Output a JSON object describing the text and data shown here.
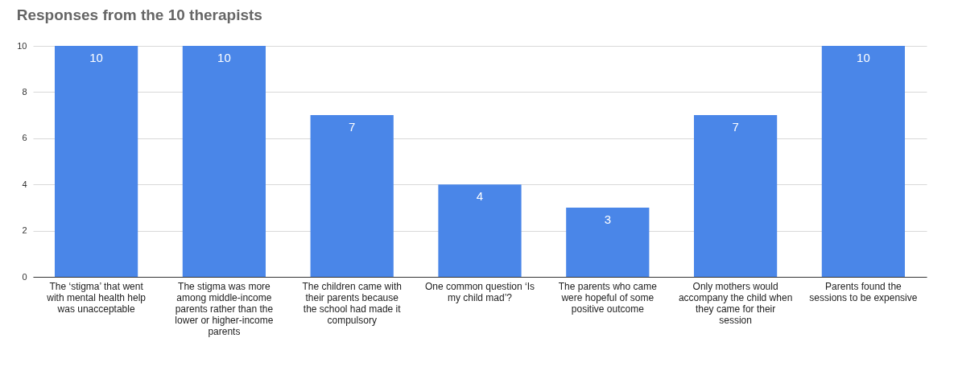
{
  "chart_data": {
    "type": "bar",
    "title": "Responses from the 10 therapists",
    "categories": [
      "The ‘stigma’ that went with mental health help was unacceptable",
      "The stigma was more among middle-income parents rather than the lower or higher-income parents",
      "The children came with their parents because the school had made it compulsory",
      "One common question ‘Is my child mad’?",
      "The parents who came were hopeful of some positive outcome",
      "Only mothers would accompany the child when they came for their session",
      "Parents found the sessions to be expensive"
    ],
    "values": [
      10,
      10,
      7,
      4,
      3,
      7,
      10
    ],
    "color": "#4a86e8",
    "ylim": [
      0,
      10
    ],
    "yticks": [
      0,
      2,
      4,
      6,
      8,
      10
    ],
    "grid": "y",
    "data_labels": true
  }
}
